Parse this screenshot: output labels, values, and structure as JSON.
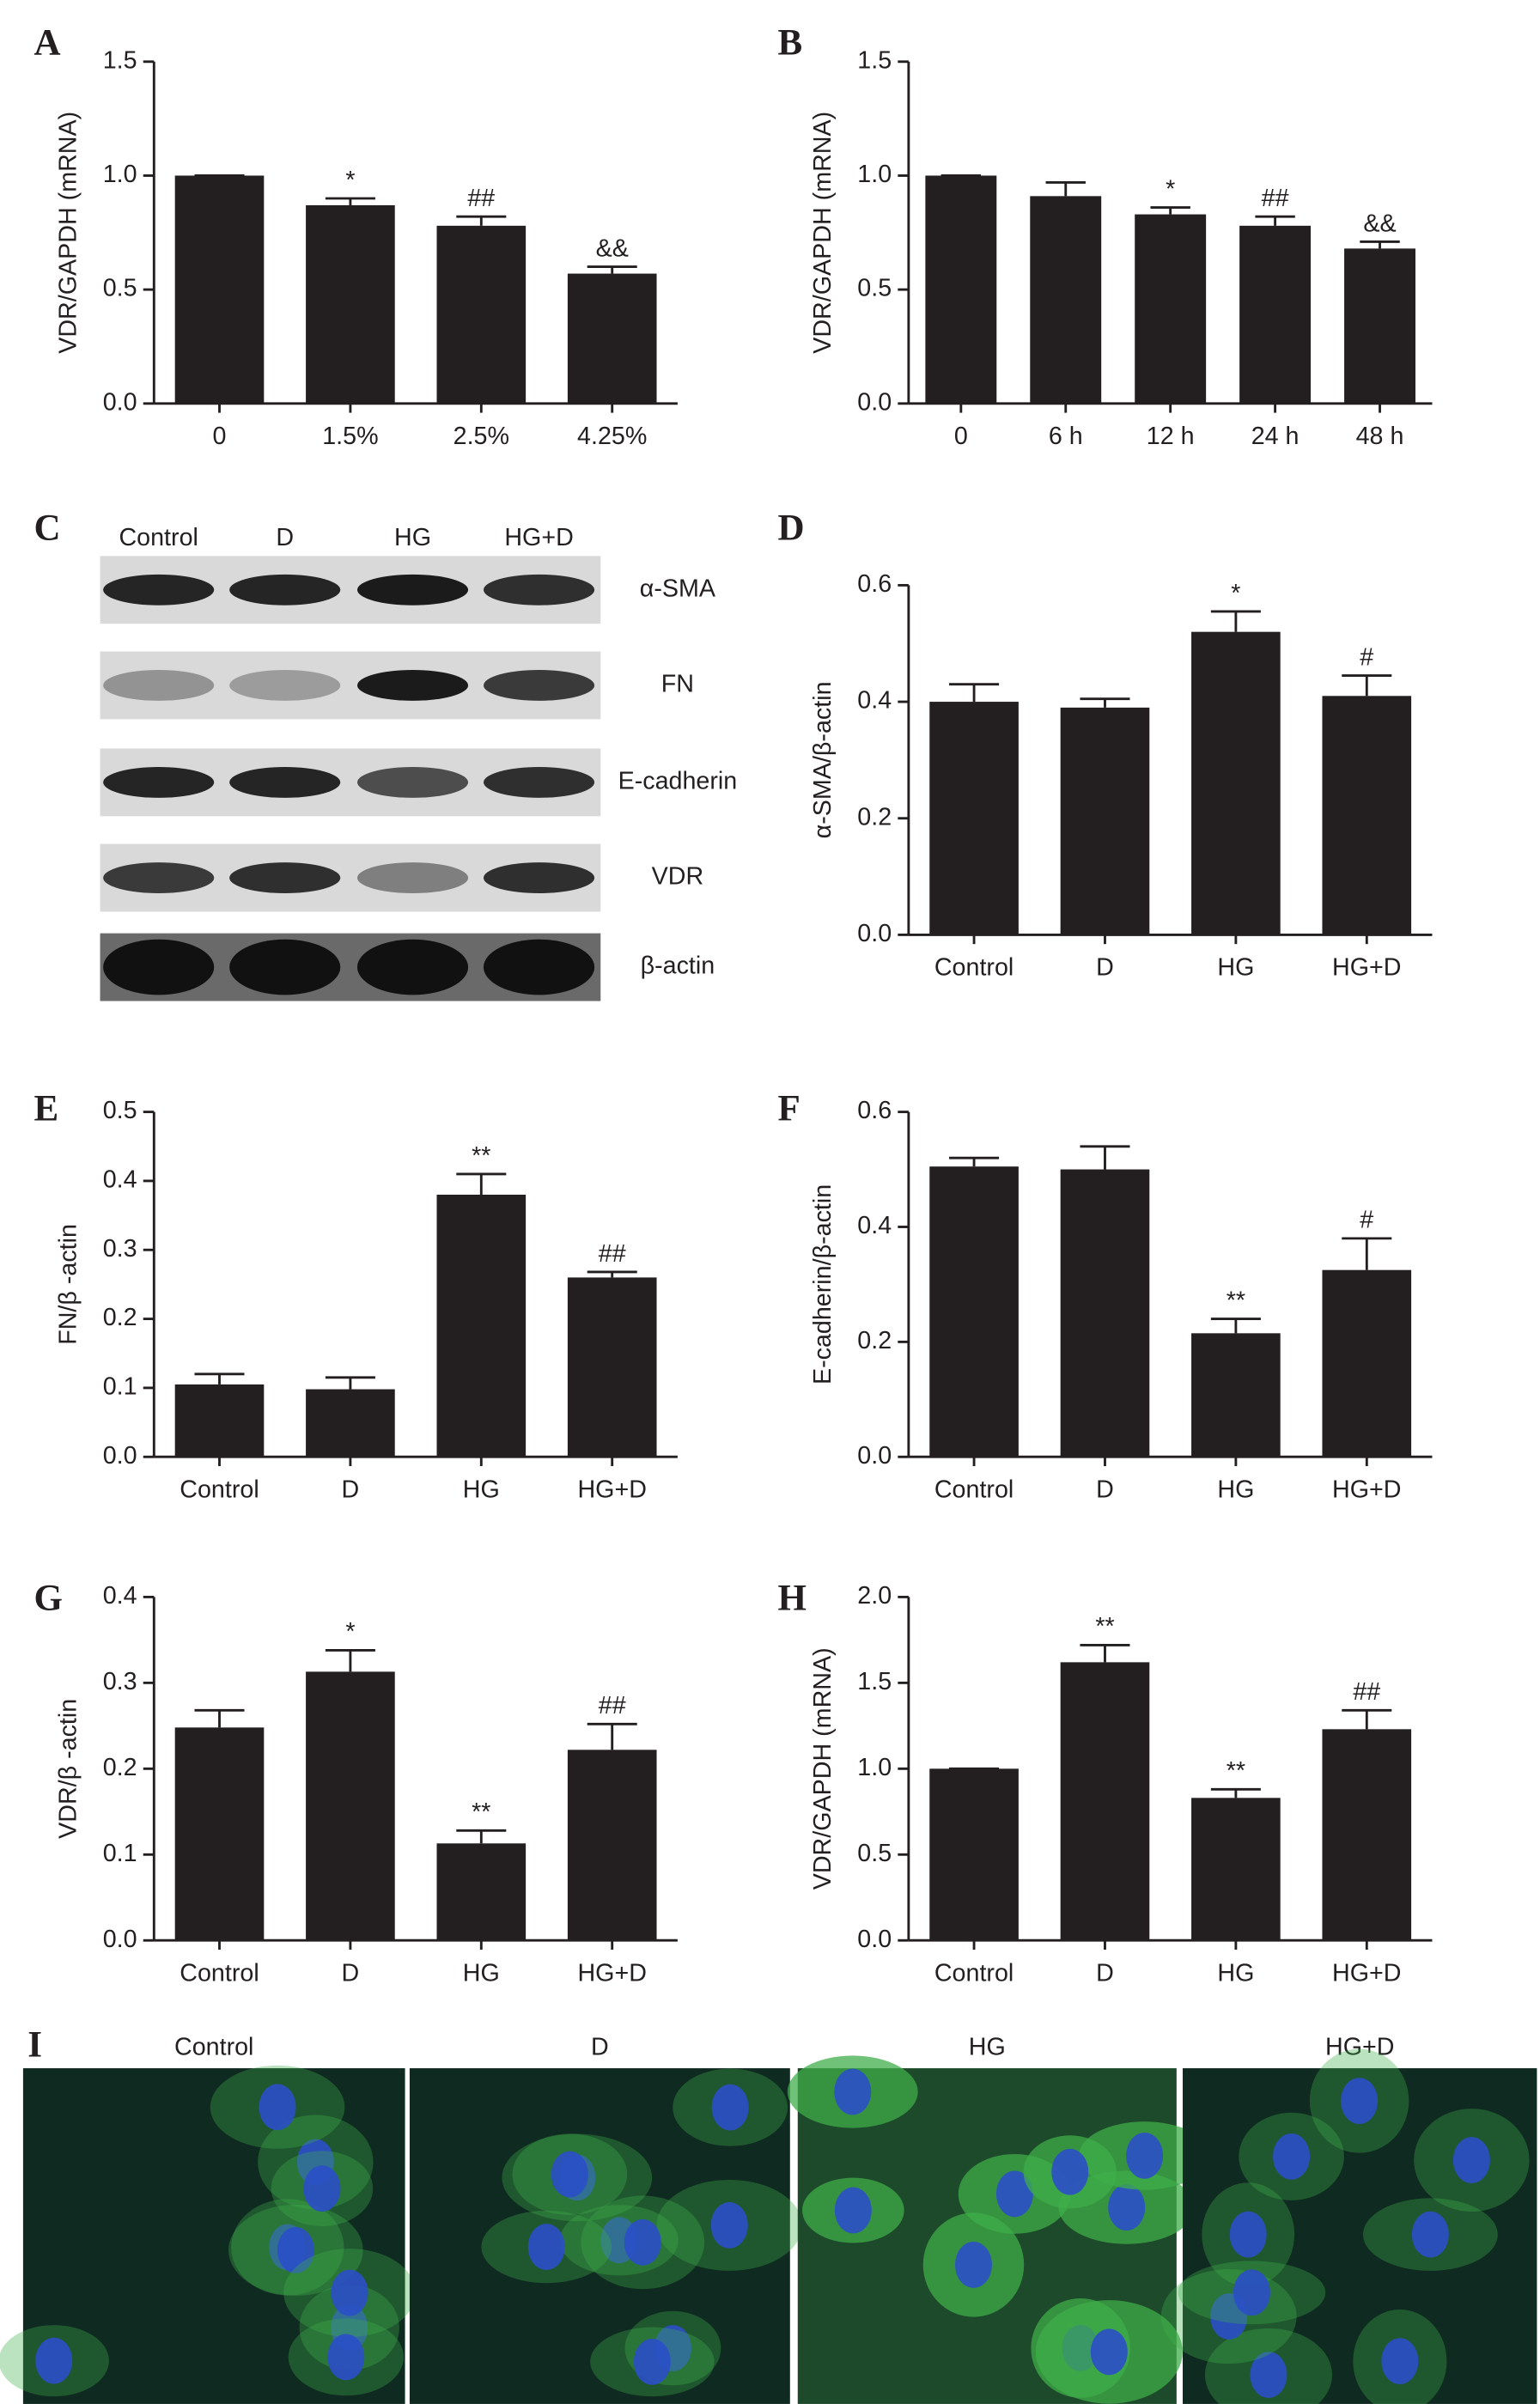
{
  "chart_data": [
    {
      "type": "bar",
      "panel_label": "A",
      "y_label": "VDR/GAPDH (mRNA)",
      "color": "#231f20",
      "categories": [
        "0",
        "1.5%",
        "2.5%",
        "4.25%"
      ],
      "values": [
        1.0,
        0.87,
        0.78,
        0.57
      ],
      "errors": [
        0,
        0.03,
        0.04,
        0.03
      ],
      "annotations": [
        null,
        "*",
        "##",
        "&&"
      ],
      "ylim": [
        0,
        1.5
      ],
      "yticks": [
        {
          "value": 0,
          "label": "0.0"
        },
        {
          "value": 0.5,
          "label": "0.5"
        },
        {
          "value": 1,
          "label": "1.0"
        },
        {
          "value": 1.5,
          "label": "1.5"
        }
      ]
    },
    {
      "type": "bar",
      "panel_label": "B",
      "y_label": "VDR/GAPDH (mRNA)",
      "color": "#231f20",
      "categories": [
        "0",
        "6 h",
        "12 h",
        "24 h",
        "48 h"
      ],
      "values": [
        1.0,
        0.91,
        0.83,
        0.78,
        0.68
      ],
      "errors": [
        0,
        0.06,
        0.03,
        0.04,
        0.03
      ],
      "annotations": [
        null,
        null,
        "*",
        "##",
        "&&"
      ],
      "ylim": [
        0,
        1.5
      ],
      "yticks": [
        {
          "value": 0,
          "label": "0.0"
        },
        {
          "value": 0.5,
          "label": "0.5"
        },
        {
          "value": 1,
          "label": "1.0"
        },
        {
          "value": 1.5,
          "label": "1.5"
        }
      ]
    },
    {
      "type": "bar",
      "panel_label": "D",
      "y_label": "α-SMA/β-actin",
      "color": "#231f20",
      "categories": [
        "Control",
        "D",
        "HG",
        "HG+D"
      ],
      "values": [
        0.4,
        0.39,
        0.52,
        0.41
      ],
      "errors": [
        0.03,
        0.015,
        0.035,
        0.035
      ],
      "annotations": [
        null,
        null,
        "*",
        "#"
      ],
      "ylim": [
        0,
        0.6
      ],
      "yticks": [
        {
          "value": 0,
          "label": "0.0"
        },
        0.2,
        0.4,
        0.6
      ]
    },
    {
      "type": "bar",
      "panel_label": "E",
      "y_label": "FN/β -actin",
      "color": "#231f20",
      "categories": [
        "Control",
        "D",
        "HG",
        "HG+D"
      ],
      "values": [
        0.105,
        0.098,
        0.38,
        0.26
      ],
      "errors": [
        0.015,
        0.017,
        0.03,
        0.008
      ],
      "annotations": [
        null,
        null,
        "**",
        "##"
      ],
      "ylim": [
        0,
        0.5
      ],
      "yticks": [
        {
          "value": 0,
          "label": "0.0"
        },
        0.1,
        0.2,
        0.3,
        0.4,
        0.5
      ]
    },
    {
      "type": "bar",
      "panel_label": "F",
      "y_label": "E-cadherin/β-actin",
      "color": "#231f20",
      "categories": [
        "Control",
        "D",
        "HG",
        "HG+D"
      ],
      "values": [
        0.505,
        0.5,
        0.215,
        0.325
      ],
      "errors": [
        0.015,
        0.04,
        0.025,
        0.055
      ],
      "annotations": [
        null,
        null,
        "**",
        "#"
      ],
      "ylim": [
        0,
        0.6
      ],
      "yticks": [
        {
          "value": 0,
          "label": "0.0"
        },
        0.2,
        0.4,
        0.6
      ]
    },
    {
      "type": "bar",
      "panel_label": "G",
      "y_label": "VDR/β -actin",
      "color": "#231f20",
      "categories": [
        "Control",
        "D",
        "HG",
        "HG+D"
      ],
      "values": [
        0.248,
        0.313,
        0.113,
        0.222
      ],
      "errors": [
        0.02,
        0.025,
        0.015,
        0.03
      ],
      "annotations": [
        null,
        "*",
        "**",
        "##"
      ],
      "ylim": [
        0,
        0.4
      ],
      "yticks": [
        {
          "value": 0,
          "label": "0.0"
        },
        0.1,
        0.2,
        0.3,
        0.4
      ]
    },
    {
      "type": "bar",
      "panel_label": "H",
      "y_label": "VDR/GAPDH (mRNA)",
      "color": "#231f20",
      "categories": [
        "Control",
        "D",
        "HG",
        "HG+D"
      ],
      "values": [
        1.0,
        1.62,
        0.83,
        1.23
      ],
      "errors": [
        0,
        0.1,
        0.05,
        0.11
      ],
      "annotations": [
        null,
        "**",
        "**",
        "##"
      ],
      "ylim": [
        0,
        2
      ],
      "yticks": [
        {
          "value": 0,
          "label": "0.0"
        },
        {
          "value": 0.5,
          "label": "0.5"
        },
        {
          "value": 1,
          "label": "1.0"
        },
        {
          "value": 1.5,
          "label": "1.5"
        },
        {
          "value": 2,
          "label": "2.0"
        }
      ]
    }
  ],
  "blot": {
    "panel_label": "C",
    "lanes": [
      "Control",
      "D",
      "HG",
      "HG+D"
    ],
    "bands": [
      "α-SMA",
      "FN",
      "E-cadherin",
      "VDR",
      "β-actin"
    ]
  },
  "images": {
    "panel_label": "I",
    "conditions": [
      "Control",
      "D",
      "HG",
      "HG+D"
    ]
  }
}
